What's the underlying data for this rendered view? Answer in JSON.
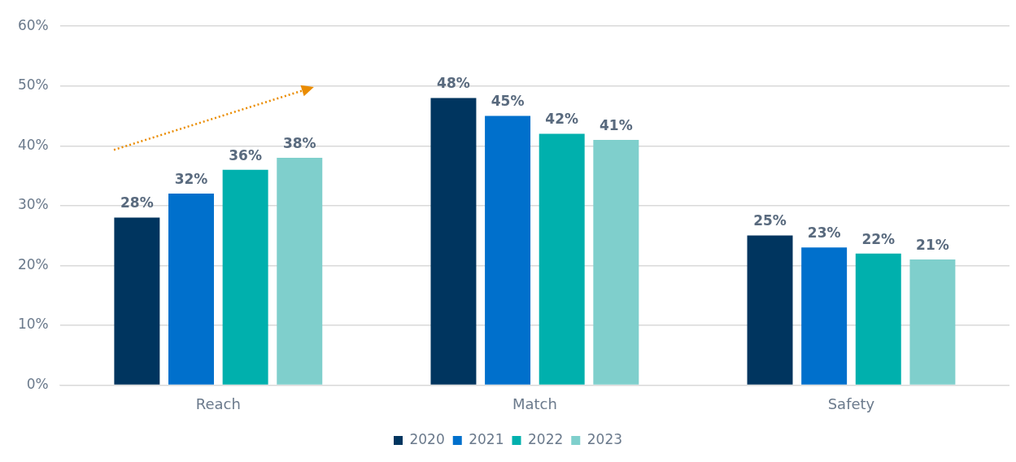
{
  "chart_data": {
    "type": "bar",
    "categories": [
      "Reach",
      "Match",
      "Safety"
    ],
    "series": [
      {
        "name": "2020",
        "color": "#00355f",
        "values": [
          28,
          48,
          25
        ],
        "value_labels": [
          "28%",
          "48%",
          "25%"
        ]
      },
      {
        "name": "2021",
        "color": "#0070cc",
        "values": [
          32,
          45,
          23
        ],
        "value_labels": [
          "32%",
          "45%",
          "23%"
        ]
      },
      {
        "name": "2022",
        "color": "#00b0ad",
        "values": [
          36,
          42,
          22
        ],
        "value_labels": [
          "36%",
          "42%",
          "22%"
        ]
      },
      {
        "name": "2023",
        "color": "#7fcfcc",
        "values": [
          38,
          41,
          21
        ],
        "value_labels": [
          "38%",
          "41%",
          "21%"
        ]
      }
    ],
    "ylim": [
      0,
      60
    ],
    "yticks": [
      {
        "value": 0,
        "label": "0%"
      },
      {
        "value": 10,
        "label": "10%"
      },
      {
        "value": 20,
        "label": "20%"
      },
      {
        "value": 30,
        "label": "30%"
      },
      {
        "value": 40,
        "label": "40%"
      },
      {
        "value": 50,
        "label": "50%"
      },
      {
        "value": 60,
        "label": "60%"
      }
    ],
    "grid": "y",
    "legend": "bottom"
  }
}
